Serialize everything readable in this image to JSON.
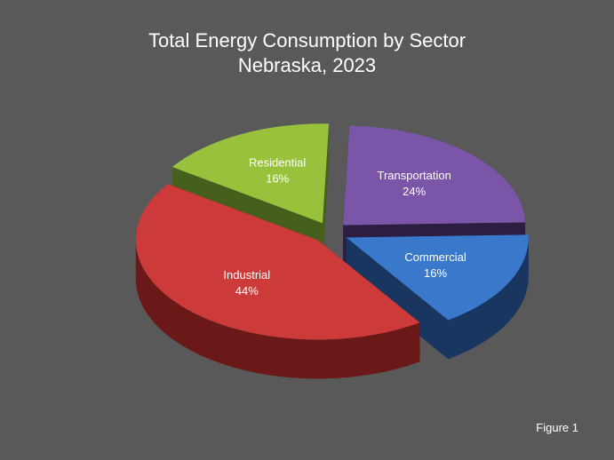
{
  "chart_data": {
    "type": "pie",
    "style": "3d-exploded",
    "title": "Total Energy Consumption by Sector",
    "subtitle": "Nebraska, 2023",
    "slices": [
      {
        "label": "Transportation",
        "value": 24,
        "display": "24%",
        "color": "#7a55a8",
        "side": "#2c1e40"
      },
      {
        "label": "Commercial",
        "value": 16,
        "display": "16%",
        "color": "#3a78cc",
        "side": "#193660"
      },
      {
        "label": "Industrial",
        "value": 44,
        "display": "44%",
        "color": "#cc3a3a",
        "side": "#6a1818"
      },
      {
        "label": "Residential",
        "value": 16,
        "display": "16%",
        "color": "#98c23c",
        "side": "#46601c"
      }
    ],
    "legend": "none"
  },
  "figure_label": "Figure 1"
}
